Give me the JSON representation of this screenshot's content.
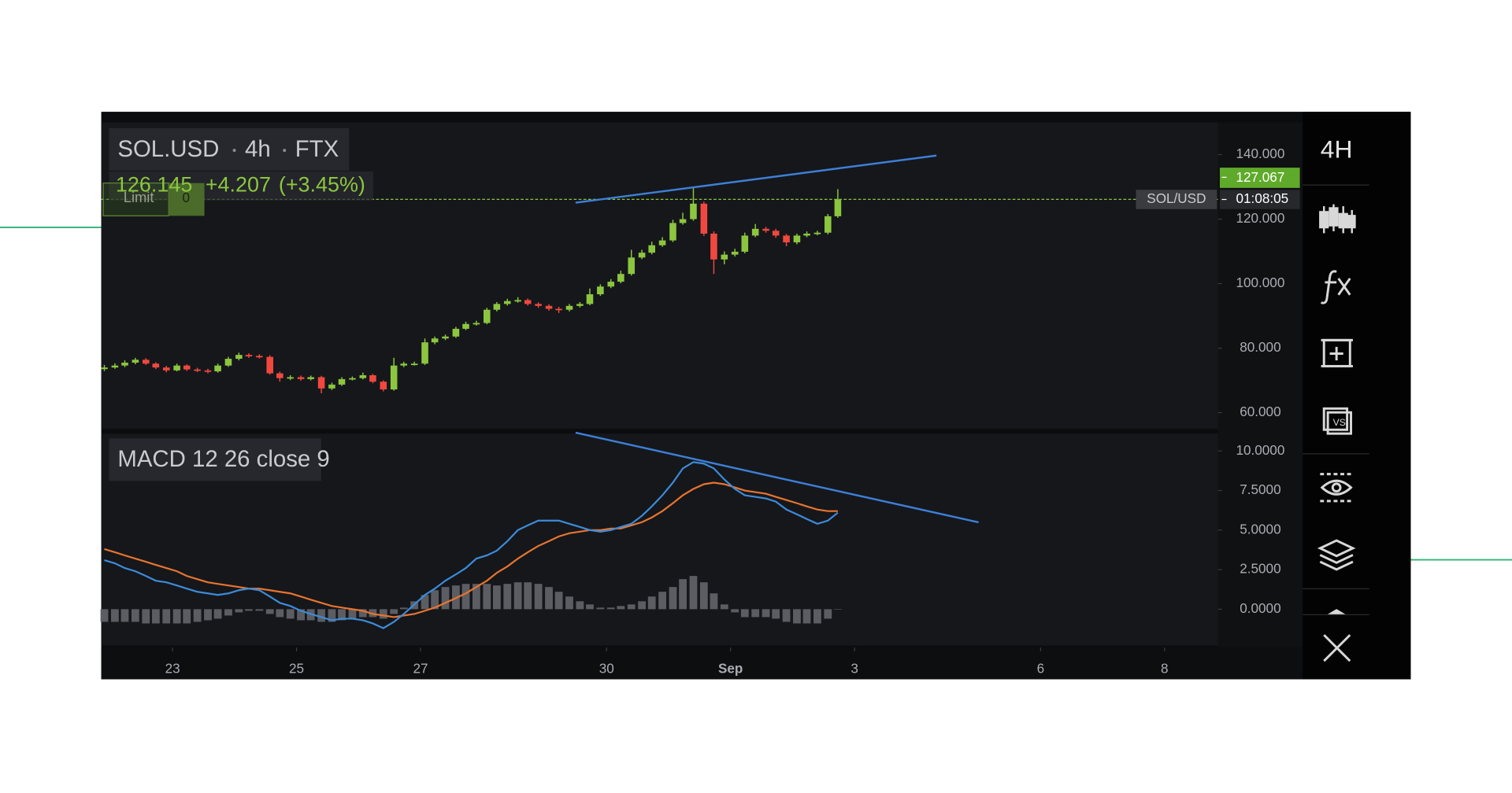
{
  "toolbar": {
    "interval": "4H"
  },
  "chart_data": [
    {
      "type": "candlestick",
      "title": "SOL.USD",
      "interval": "4h",
      "exchange": "FTX",
      "last": 126.145,
      "change": "+4.207",
      "change_pct": "(+3.45%)",
      "ask": 127.067,
      "symbol_tag": "SOL/USD",
      "countdown": "01:08:05",
      "order_type": "Limit",
      "order_qty": 0,
      "up_color": "#8cc63f",
      "down_color": "#f0483e",
      "last_color": "#8cc63f",
      "x": [
        21.9,
        22.07,
        22.23,
        22.4,
        22.57,
        22.73,
        22.9,
        23.07,
        23.23,
        23.4,
        23.57,
        23.73,
        23.9,
        24.07,
        24.23,
        24.4,
        24.57,
        24.73,
        24.9,
        25.07,
        25.23,
        25.4,
        25.57,
        25.73,
        25.9,
        26.07,
        26.23,
        26.4,
        26.57,
        26.73,
        26.9,
        27.07,
        27.23,
        27.4,
        27.57,
        27.73,
        27.9,
        28.07,
        28.23,
        28.4,
        28.57,
        28.73,
        28.9,
        29.07,
        29.23,
        29.4,
        29.57,
        29.73,
        29.9,
        30.07,
        30.23,
        30.4,
        30.57,
        30.73,
        30.9,
        31.07,
        31.23,
        31.4,
        31.57,
        31.73,
        31.9,
        32.07,
        32.23,
        32.4,
        32.57,
        32.73,
        32.9,
        33.07,
        33.23,
        33.4,
        33.57,
        33.73
      ],
      "ohlc": [
        [
          73.5,
          74.8,
          72.9,
          74
        ],
        [
          74,
          75.3,
          73.6,
          74.6
        ],
        [
          74.6,
          76.2,
          74.1,
          75.5
        ],
        [
          75.5,
          77,
          75,
          76.4
        ],
        [
          76.4,
          76.9,
          74.8,
          75.2
        ],
        [
          75.2,
          75.6,
          73.5,
          74
        ],
        [
          74,
          74.5,
          72.5,
          73.1
        ],
        [
          73.1,
          75.2,
          72.8,
          74.6
        ],
        [
          74.6,
          75,
          72.9,
          73.4
        ],
        [
          73.4,
          73.9,
          72.6,
          73.1
        ],
        [
          73.1,
          73.6,
          72.2,
          72.8
        ],
        [
          72.8,
          75.2,
          72.4,
          74.6
        ],
        [
          74.6,
          77.3,
          74.2,
          76.7
        ],
        [
          76.7,
          78.6,
          76.2,
          77.9
        ],
        [
          77.9,
          78.4,
          77,
          77.6
        ],
        [
          77.6,
          78.1,
          76.8,
          77.3
        ],
        [
          77.3,
          77.8,
          71.8,
          72.2
        ],
        [
          72.2,
          72.7,
          69.6,
          70.7
        ],
        [
          70.7,
          71.6,
          70.1,
          71
        ],
        [
          71,
          71.5,
          69.9,
          70.4
        ],
        [
          70.4,
          71.5,
          70,
          71
        ],
        [
          71,
          71.4,
          66,
          67.5
        ],
        [
          67.5,
          69.3,
          67,
          68.7
        ],
        [
          68.7,
          71,
          68.3,
          70.4
        ],
        [
          70.4,
          71.2,
          70,
          70.7
        ],
        [
          70.7,
          72.4,
          70.3,
          71.6
        ],
        [
          71.6,
          72,
          69.1,
          69.6
        ],
        [
          69.6,
          70,
          66.6,
          67.2
        ],
        [
          67.2,
          77,
          66.8,
          74.6
        ],
        [
          74.6,
          75.8,
          74.1,
          75.2
        ],
        [
          75.2,
          75.8,
          74.6,
          75.2
        ],
        [
          75.2,
          83,
          74.8,
          81.8
        ],
        [
          81.8,
          83.6,
          81.2,
          83
        ],
        [
          83,
          84.2,
          82.5,
          83.6
        ],
        [
          83.6,
          86.6,
          83.2,
          86
        ],
        [
          86,
          88.2,
          85.6,
          87.5
        ],
        [
          87.5,
          88.5,
          87,
          87.8
        ],
        [
          87.8,
          92.5,
          87.4,
          91.9
        ],
        [
          91.9,
          94.3,
          91.4,
          93.7
        ],
        [
          93.7,
          95.3,
          93.2,
          94.6
        ],
        [
          94.6,
          95.8,
          94.1,
          94.9
        ],
        [
          94.9,
          95.4,
          93.2,
          93.7
        ],
        [
          93.7,
          94.2,
          92.5,
          93.1
        ],
        [
          93.1,
          93.6,
          91.6,
          92.2
        ],
        [
          92.2,
          92.8,
          90.9,
          91.9
        ],
        [
          91.9,
          93.7,
          91.4,
          93.1
        ],
        [
          93.1,
          94.3,
          92.6,
          93.7
        ],
        [
          93.7,
          98.5,
          93.3,
          96.7
        ],
        [
          96.7,
          99.8,
          96.2,
          99.1
        ],
        [
          99.1,
          101.4,
          98.6,
          100.6
        ],
        [
          100.6,
          104,
          100.1,
          103
        ],
        [
          103,
          110.5,
          102.5,
          108.1
        ],
        [
          108.1,
          110.5,
          107.6,
          109.6
        ],
        [
          109.6,
          113,
          109.1,
          111.9
        ],
        [
          111.9,
          114.4,
          111.4,
          113.4
        ],
        [
          113.4,
          119.8,
          112.9,
          118.8
        ],
        [
          118.8,
          122,
          118.3,
          120
        ],
        [
          120,
          129.6,
          119.5,
          124.8
        ],
        [
          124.8,
          125.4,
          114.8,
          115.5
        ],
        [
          115.5,
          116.2,
          103,
          107.5
        ],
        [
          107.5,
          110,
          106,
          109
        ],
        [
          109,
          110.8,
          108.4,
          109.9
        ],
        [
          109.9,
          115.8,
          109.4,
          114.9
        ],
        [
          114.9,
          118.5,
          114.4,
          117
        ],
        [
          117,
          117.6,
          115.8,
          116.4
        ],
        [
          116.4,
          117,
          114.2,
          114.9
        ],
        [
          114.9,
          115.4,
          111.6,
          112.8
        ],
        [
          112.8,
          115.5,
          112.2,
          114.9
        ],
        [
          114.9,
          116.2,
          114.4,
          115.5
        ],
        [
          115.5,
          116.4,
          115,
          115.8
        ],
        [
          115.8,
          121.6,
          115.3,
          120.9
        ],
        [
          120.9,
          129.3,
          120.4,
          126.1
        ]
      ],
      "xlim": [
        21.85,
        39.86
      ],
      "xticks": [
        23,
        25,
        27,
        30,
        {
          "value": 32,
          "label": "Sep"
        },
        {
          "value": 34,
          "label": "3"
        },
        {
          "value": 37,
          "label": "6"
        },
        {
          "value": 39,
          "label": "8"
        }
      ],
      "ylim": [
        55,
        150
      ],
      "yticks": [
        {
          "value": 60,
          "label": "60.000"
        },
        {
          "value": 80,
          "label": "80.000"
        },
        {
          "value": 100,
          "label": "100.000"
        },
        {
          "value": 120,
          "label": "120.000"
        },
        {
          "value": 140,
          "label": "140.000"
        }
      ],
      "trendlines": [
        {
          "color": "#3d7fd6",
          "x": [
            29.5,
            35.32
          ],
          "y": [
            125.1,
            139.7
          ]
        }
      ]
    },
    {
      "type": "macd",
      "title": "MACD 12 26 close 9",
      "series": [
        {
          "color": "#3d8bd9",
          "values": [
            3.1,
            2.9,
            2.6,
            2.4,
            2.1,
            1.8,
            1.7,
            1.5,
            1.3,
            1.1,
            1.0,
            0.9,
            1.0,
            1.2,
            1.3,
            1.2,
            0.8,
            0.4,
            0.2,
            -0.1,
            -0.3,
            -0.5,
            -0.7,
            -0.6,
            -0.6,
            -0.7,
            -0.9,
            -1.2,
            -0.8,
            -0.3,
            0.3,
            0.9,
            1.3,
            1.8,
            2.2,
            2.6,
            3.2,
            3.4,
            3.7,
            4.3,
            5.0,
            5.3,
            5.6,
            5.6,
            5.6,
            5.4,
            5.2,
            5.0,
            4.9,
            5.0,
            5.2,
            5.4,
            5.9,
            6.5,
            7.2,
            8.0,
            8.9,
            9.3,
            9.2,
            8.9,
            8.2,
            7.6,
            7.2,
            7.1,
            7.0,
            6.8,
            6.3,
            6.0,
            5.7,
            5.4,
            5.6,
            6.1
          ]
        },
        {
          "color": "#e8742f",
          "values": [
            3.8,
            3.6,
            3.4,
            3.2,
            3.0,
            2.8,
            2.6,
            2.4,
            2.1,
            1.9,
            1.7,
            1.6,
            1.5,
            1.4,
            1.3,
            1.3,
            1.2,
            1.1,
            1.0,
            0.8,
            0.6,
            0.4,
            0.2,
            0.1,
            0.0,
            -0.1,
            -0.3,
            -0.4,
            -0.5,
            -0.4,
            -0.3,
            -0.1,
            0.1,
            0.4,
            0.7,
            1.0,
            1.4,
            1.8,
            2.3,
            2.7,
            3.2,
            3.6,
            4.0,
            4.3,
            4.6,
            4.8,
            4.9,
            5.0,
            5.0,
            5.1,
            5.1,
            5.3,
            5.5,
            5.8,
            6.2,
            6.7,
            7.2,
            7.6,
            7.9,
            8.0,
            7.9,
            7.7,
            7.5,
            7.4,
            7.3,
            7.1,
            6.9,
            6.7,
            6.5,
            6.3,
            6.2,
            6.2
          ]
        }
      ],
      "histogram": {
        "color": "#5b5d62",
        "values": [
          -0.8,
          -0.8,
          -0.8,
          -0.8,
          -0.9,
          -0.9,
          -0.9,
          -0.9,
          -0.9,
          -0.8,
          -0.7,
          -0.6,
          -0.4,
          -0.2,
          -0.1,
          -0.1,
          -0.3,
          -0.5,
          -0.6,
          -0.7,
          -0.7,
          -0.8,
          -0.8,
          -0.7,
          -0.6,
          -0.5,
          -0.5,
          -0.6,
          -0.3,
          0.1,
          0.5,
          0.9,
          1.2,
          1.4,
          1.5,
          1.6,
          1.6,
          1.6,
          1.5,
          1.6,
          1.7,
          1.7,
          1.6,
          1.4,
          1.1,
          0.8,
          0.5,
          0.3,
          0.1,
          0.1,
          0.2,
          0.3,
          0.5,
          0.8,
          1.1,
          1.4,
          1.9,
          2.1,
          1.7,
          1.0,
          0.3,
          -0.2,
          -0.5,
          -0.5,
          -0.5,
          -0.6,
          -0.8,
          -0.9,
          -0.9,
          -0.9,
          -0.6,
          0.0
        ]
      },
      "ylim": [
        -2.3,
        11.1
      ],
      "yticks": [
        {
          "value": 0,
          "label": "0.0000"
        },
        {
          "value": 2.5,
          "label": "2.5000"
        },
        {
          "value": 5,
          "label": "5.0000"
        },
        {
          "value": 7.5,
          "label": "7.5000"
        },
        {
          "value": 10,
          "label": "10.0000"
        }
      ],
      "trendlines": [
        {
          "color": "#3d7fd6",
          "x": [
            29.5,
            36.0
          ],
          "y": [
            11.16,
            5.49
          ]
        }
      ]
    }
  ]
}
